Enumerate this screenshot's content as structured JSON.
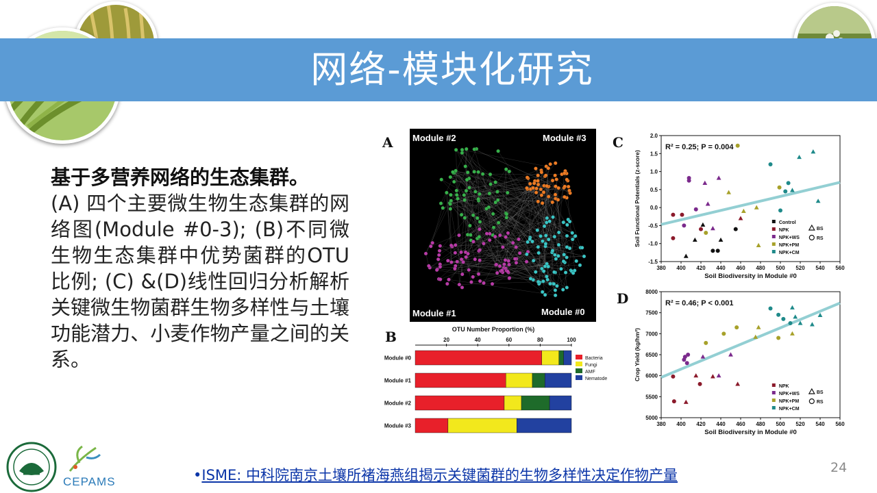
{
  "slide": {
    "title": "网络-模块化研究",
    "lead": "基于多营养网络的生态集群。",
    "body": "(A) 四个主要微生物生态集群的网络图(Module #0-3); (B)不同微生物生态集群中优势菌群的OTU比例; (C) &(D)线性回归分析解析关键微生物菌群生物多样性与土壤功能潜力、小麦作物产量之间的关系。",
    "citation_bullet": "•",
    "citation": "ISME: 中科院南京土壤所褚海燕组揭示关键菌群的生物多样性决定作物产量",
    "page_number": "24",
    "logo_text": "CEPAMS"
  },
  "figure": {
    "panel_a": {
      "letter": "A",
      "modules": [
        "Module #2",
        "Module #3",
        "Module #1",
        "Module #0"
      ]
    },
    "panel_letters": {
      "b": "B",
      "c": "C",
      "d": "D"
    }
  },
  "chart_data": [
    {
      "type": "bar",
      "panel": "B",
      "title": "OTU Number Proportion (%)",
      "categories": [
        "Module #0",
        "Module #1",
        "Module #2",
        "Module #3"
      ],
      "xticks": [
        "20",
        "40",
        "60",
        "80",
        "100"
      ],
      "xlim": [
        0,
        100
      ],
      "stacked": true,
      "legend_position": "right",
      "series": [
        {
          "name": "Bacteria",
          "color": "#e8202a",
          "values": [
            81,
            58,
            57,
            21
          ]
        },
        {
          "name": "Fungi",
          "color": "#f2e81c",
          "values": [
            11,
            17,
            11,
            44
          ]
        },
        {
          "name": "AMF",
          "color": "#1e6b2a",
          "values": [
            3,
            8,
            18,
            0
          ]
        },
        {
          "name": "Nematode",
          "color": "#2241a0",
          "values": [
            5,
            17,
            14,
            35
          ]
        }
      ]
    },
    {
      "type": "scatter",
      "panel": "C",
      "xlabel": "Soil Biodiversity in Module #0",
      "ylabel": "Soil Functional Potentials (z-score)",
      "annotation": "R² = 0.25; P = 0.004",
      "xlim": [
        380,
        560
      ],
      "ylim": [
        -1.5,
        2.0
      ],
      "xticks": [
        "380",
        "400",
        "420",
        "440",
        "460",
        "480",
        "500",
        "520",
        "540",
        "560"
      ],
      "yticks": [
        "-1.5",
        "-1.0",
        "-0.5",
        "0.0",
        "0.5",
        "1.0",
        "1.5",
        "2.0"
      ],
      "legend_position": "bottom-right",
      "legend_groups": [
        "Control",
        "NPK",
        "NPK+WS",
        "NPK+PM",
        "NPK+CM"
      ],
      "legend_shapes": [
        "BS",
        "RS"
      ],
      "fit_line": {
        "x": [
          380,
          560
        ],
        "y": [
          -0.47,
          0.7
        ]
      },
      "groups": {
        "Control": {
          "color": "#111111"
        },
        "NPK": {
          "color": "#8b1a2b"
        },
        "NPK+WS": {
          "color": "#7b2a8c"
        },
        "NPK+PM": {
          "color": "#a7a12a"
        },
        "NPK+CM": {
          "color": "#1f8a8a"
        }
      },
      "points": [
        {
          "x": 392,
          "y": -0.2,
          "group": "NPK",
          "shape": "circle"
        },
        {
          "x": 392,
          "y": -0.85,
          "group": "NPK",
          "shape": "circle"
        },
        {
          "x": 401,
          "y": -0.2,
          "group": "NPK",
          "shape": "circle"
        },
        {
          "x": 420,
          "y": -0.6,
          "group": "NPK",
          "shape": "circle"
        },
        {
          "x": 403,
          "y": -0.5,
          "group": "NPK+WS",
          "shape": "circle"
        },
        {
          "x": 408,
          "y": 0.75,
          "group": "NPK+WS",
          "shape": "circle"
        },
        {
          "x": 408,
          "y": 0.82,
          "group": "NPK+WS",
          "shape": "circle"
        },
        {
          "x": 415,
          "y": -0.05,
          "group": "NPK+WS",
          "shape": "circle"
        },
        {
          "x": 425,
          "y": -0.7,
          "group": "NPK+PM",
          "shape": "circle"
        },
        {
          "x": 432,
          "y": -1.2,
          "group": "Control",
          "shape": "circle"
        },
        {
          "x": 437,
          "y": -1.2,
          "group": "Control",
          "shape": "circle"
        },
        {
          "x": 455,
          "y": -0.6,
          "group": "Control",
          "shape": "circle"
        },
        {
          "x": 405,
          "y": -1.35,
          "group": "Control",
          "shape": "triangle"
        },
        {
          "x": 414,
          "y": -0.9,
          "group": "Control",
          "shape": "triangle"
        },
        {
          "x": 422,
          "y": -0.48,
          "group": "Control",
          "shape": "triangle"
        },
        {
          "x": 440,
          "y": -0.9,
          "group": "Control",
          "shape": "triangle"
        },
        {
          "x": 424,
          "y": 0.68,
          "group": "NPK+WS",
          "shape": "triangle"
        },
        {
          "x": 427,
          "y": 0.1,
          "group": "NPK+WS",
          "shape": "triangle"
        },
        {
          "x": 432,
          "y": -0.58,
          "group": "NPK+WS",
          "shape": "triangle"
        },
        {
          "x": 438,
          "y": 0.82,
          "group": "NPK+WS",
          "shape": "triangle"
        },
        {
          "x": 460,
          "y": -0.3,
          "group": "NPK",
          "shape": "triangle"
        },
        {
          "x": 448,
          "y": 0.42,
          "group": "NPK+PM",
          "shape": "triangle"
        },
        {
          "x": 463,
          "y": -0.1,
          "group": "NPK+PM",
          "shape": "triangle"
        },
        {
          "x": 476,
          "y": 0.0,
          "group": "NPK+PM",
          "shape": "triangle"
        },
        {
          "x": 478,
          "y": -1.05,
          "group": "NPK+PM",
          "shape": "triangle"
        },
        {
          "x": 457,
          "y": 1.72,
          "group": "NPK+PM",
          "shape": "circle"
        },
        {
          "x": 499,
          "y": 0.56,
          "group": "NPK+PM",
          "shape": "circle"
        },
        {
          "x": 490,
          "y": 1.2,
          "group": "NPK+CM",
          "shape": "circle"
        },
        {
          "x": 500,
          "y": -0.08,
          "group": "NPK+CM",
          "shape": "circle"
        },
        {
          "x": 505,
          "y": 0.45,
          "group": "NPK+CM",
          "shape": "circle"
        },
        {
          "x": 508,
          "y": 0.68,
          "group": "NPK+CM",
          "shape": "circle"
        },
        {
          "x": 512,
          "y": 0.48,
          "group": "NPK+CM",
          "shape": "triangle"
        },
        {
          "x": 519,
          "y": 1.4,
          "group": "NPK+CM",
          "shape": "triangle"
        },
        {
          "x": 533,
          "y": 1.55,
          "group": "NPK+CM",
          "shape": "triangle"
        },
        {
          "x": 538,
          "y": 0.18,
          "group": "NPK+CM",
          "shape": "triangle"
        }
      ]
    },
    {
      "type": "scatter",
      "panel": "D",
      "xlabel": "Soil Biodiversity in Module #0",
      "ylabel": "Crop Yield (kg/hm²)",
      "annotation": "R² = 0.46; P < 0.001",
      "xlim": [
        380,
        560
      ],
      "ylim": [
        5000,
        8000
      ],
      "xticks": [
        "380",
        "400",
        "420",
        "440",
        "460",
        "480",
        "500",
        "520",
        "540",
        "560"
      ],
      "yticks": [
        "5000",
        "5500",
        "6000",
        "6500",
        "7000",
        "7500",
        "8000"
      ],
      "legend_position": "bottom-right",
      "legend_groups": [
        "NPK",
        "NPK+WS",
        "NPK+PM",
        "NPK+CM"
      ],
      "legend_shapes": [
        "BS",
        "RS"
      ],
      "fit_line": {
        "x": [
          380,
          560
        ],
        "y": [
          5960,
          7730
        ]
      },
      "groups": {
        "NPK": {
          "color": "#8b1a2b"
        },
        "NPK+WS": {
          "color": "#7b2a8c"
        },
        "NPK+PM": {
          "color": "#a7a12a"
        },
        "NPK+CM": {
          "color": "#1f8a8a"
        }
      },
      "points": [
        {
          "x": 392,
          "y": 5980,
          "group": "NPK",
          "shape": "circle"
        },
        {
          "x": 393,
          "y": 5390,
          "group": "NPK",
          "shape": "circle"
        },
        {
          "x": 405,
          "y": 5370,
          "group": "NPK",
          "shape": "triangle"
        },
        {
          "x": 415,
          "y": 6000,
          "group": "NPK",
          "shape": "triangle"
        },
        {
          "x": 419,
          "y": 5800,
          "group": "NPK",
          "shape": "circle"
        },
        {
          "x": 432,
          "y": 5980,
          "group": "NPK",
          "shape": "triangle"
        },
        {
          "x": 457,
          "y": 5800,
          "group": "NPK",
          "shape": "triangle"
        },
        {
          "x": 403,
          "y": 6380,
          "group": "NPK+WS",
          "shape": "circle"
        },
        {
          "x": 404,
          "y": 6450,
          "group": "NPK+WS",
          "shape": "circle"
        },
        {
          "x": 407,
          "y": 6500,
          "group": "NPK+WS",
          "shape": "circle"
        },
        {
          "x": 406,
          "y": 6300,
          "group": "NPK+WS",
          "shape": "circle"
        },
        {
          "x": 422,
          "y": 6450,
          "group": "NPK+WS",
          "shape": "triangle"
        },
        {
          "x": 438,
          "y": 6000,
          "group": "NPK+WS",
          "shape": "triangle"
        },
        {
          "x": 450,
          "y": 6500,
          "group": "NPK+WS",
          "shape": "triangle"
        },
        {
          "x": 425,
          "y": 6780,
          "group": "NPK+PM",
          "shape": "circle"
        },
        {
          "x": 443,
          "y": 7000,
          "group": "NPK+PM",
          "shape": "circle"
        },
        {
          "x": 456,
          "y": 7150,
          "group": "NPK+PM",
          "shape": "circle"
        },
        {
          "x": 475,
          "y": 6920,
          "group": "NPK+PM",
          "shape": "triangle"
        },
        {
          "x": 478,
          "y": 7150,
          "group": "NPK+PM",
          "shape": "triangle"
        },
        {
          "x": 498,
          "y": 6900,
          "group": "NPK+PM",
          "shape": "circle"
        },
        {
          "x": 490,
          "y": 7600,
          "group": "NPK+CM",
          "shape": "circle"
        },
        {
          "x": 498,
          "y": 7450,
          "group": "NPK+CM",
          "shape": "circle"
        },
        {
          "x": 503,
          "y": 7350,
          "group": "NPK+CM",
          "shape": "circle"
        },
        {
          "x": 510,
          "y": 7250,
          "group": "NPK+CM",
          "shape": "circle"
        },
        {
          "x": 512,
          "y": 7620,
          "group": "NPK+CM",
          "shape": "triangle"
        },
        {
          "x": 515,
          "y": 7400,
          "group": "NPK+CM",
          "shape": "triangle"
        },
        {
          "x": 520,
          "y": 7250,
          "group": "NPK+CM",
          "shape": "triangle"
        },
        {
          "x": 532,
          "y": 7220,
          "group": "NPK+CM",
          "shape": "triangle"
        },
        {
          "x": 540,
          "y": 7440,
          "group": "NPK+CM",
          "shape": "triangle"
        },
        {
          "x": 512,
          "y": 7000,
          "group": "NPK+PM",
          "shape": "triangle"
        }
      ]
    }
  ]
}
